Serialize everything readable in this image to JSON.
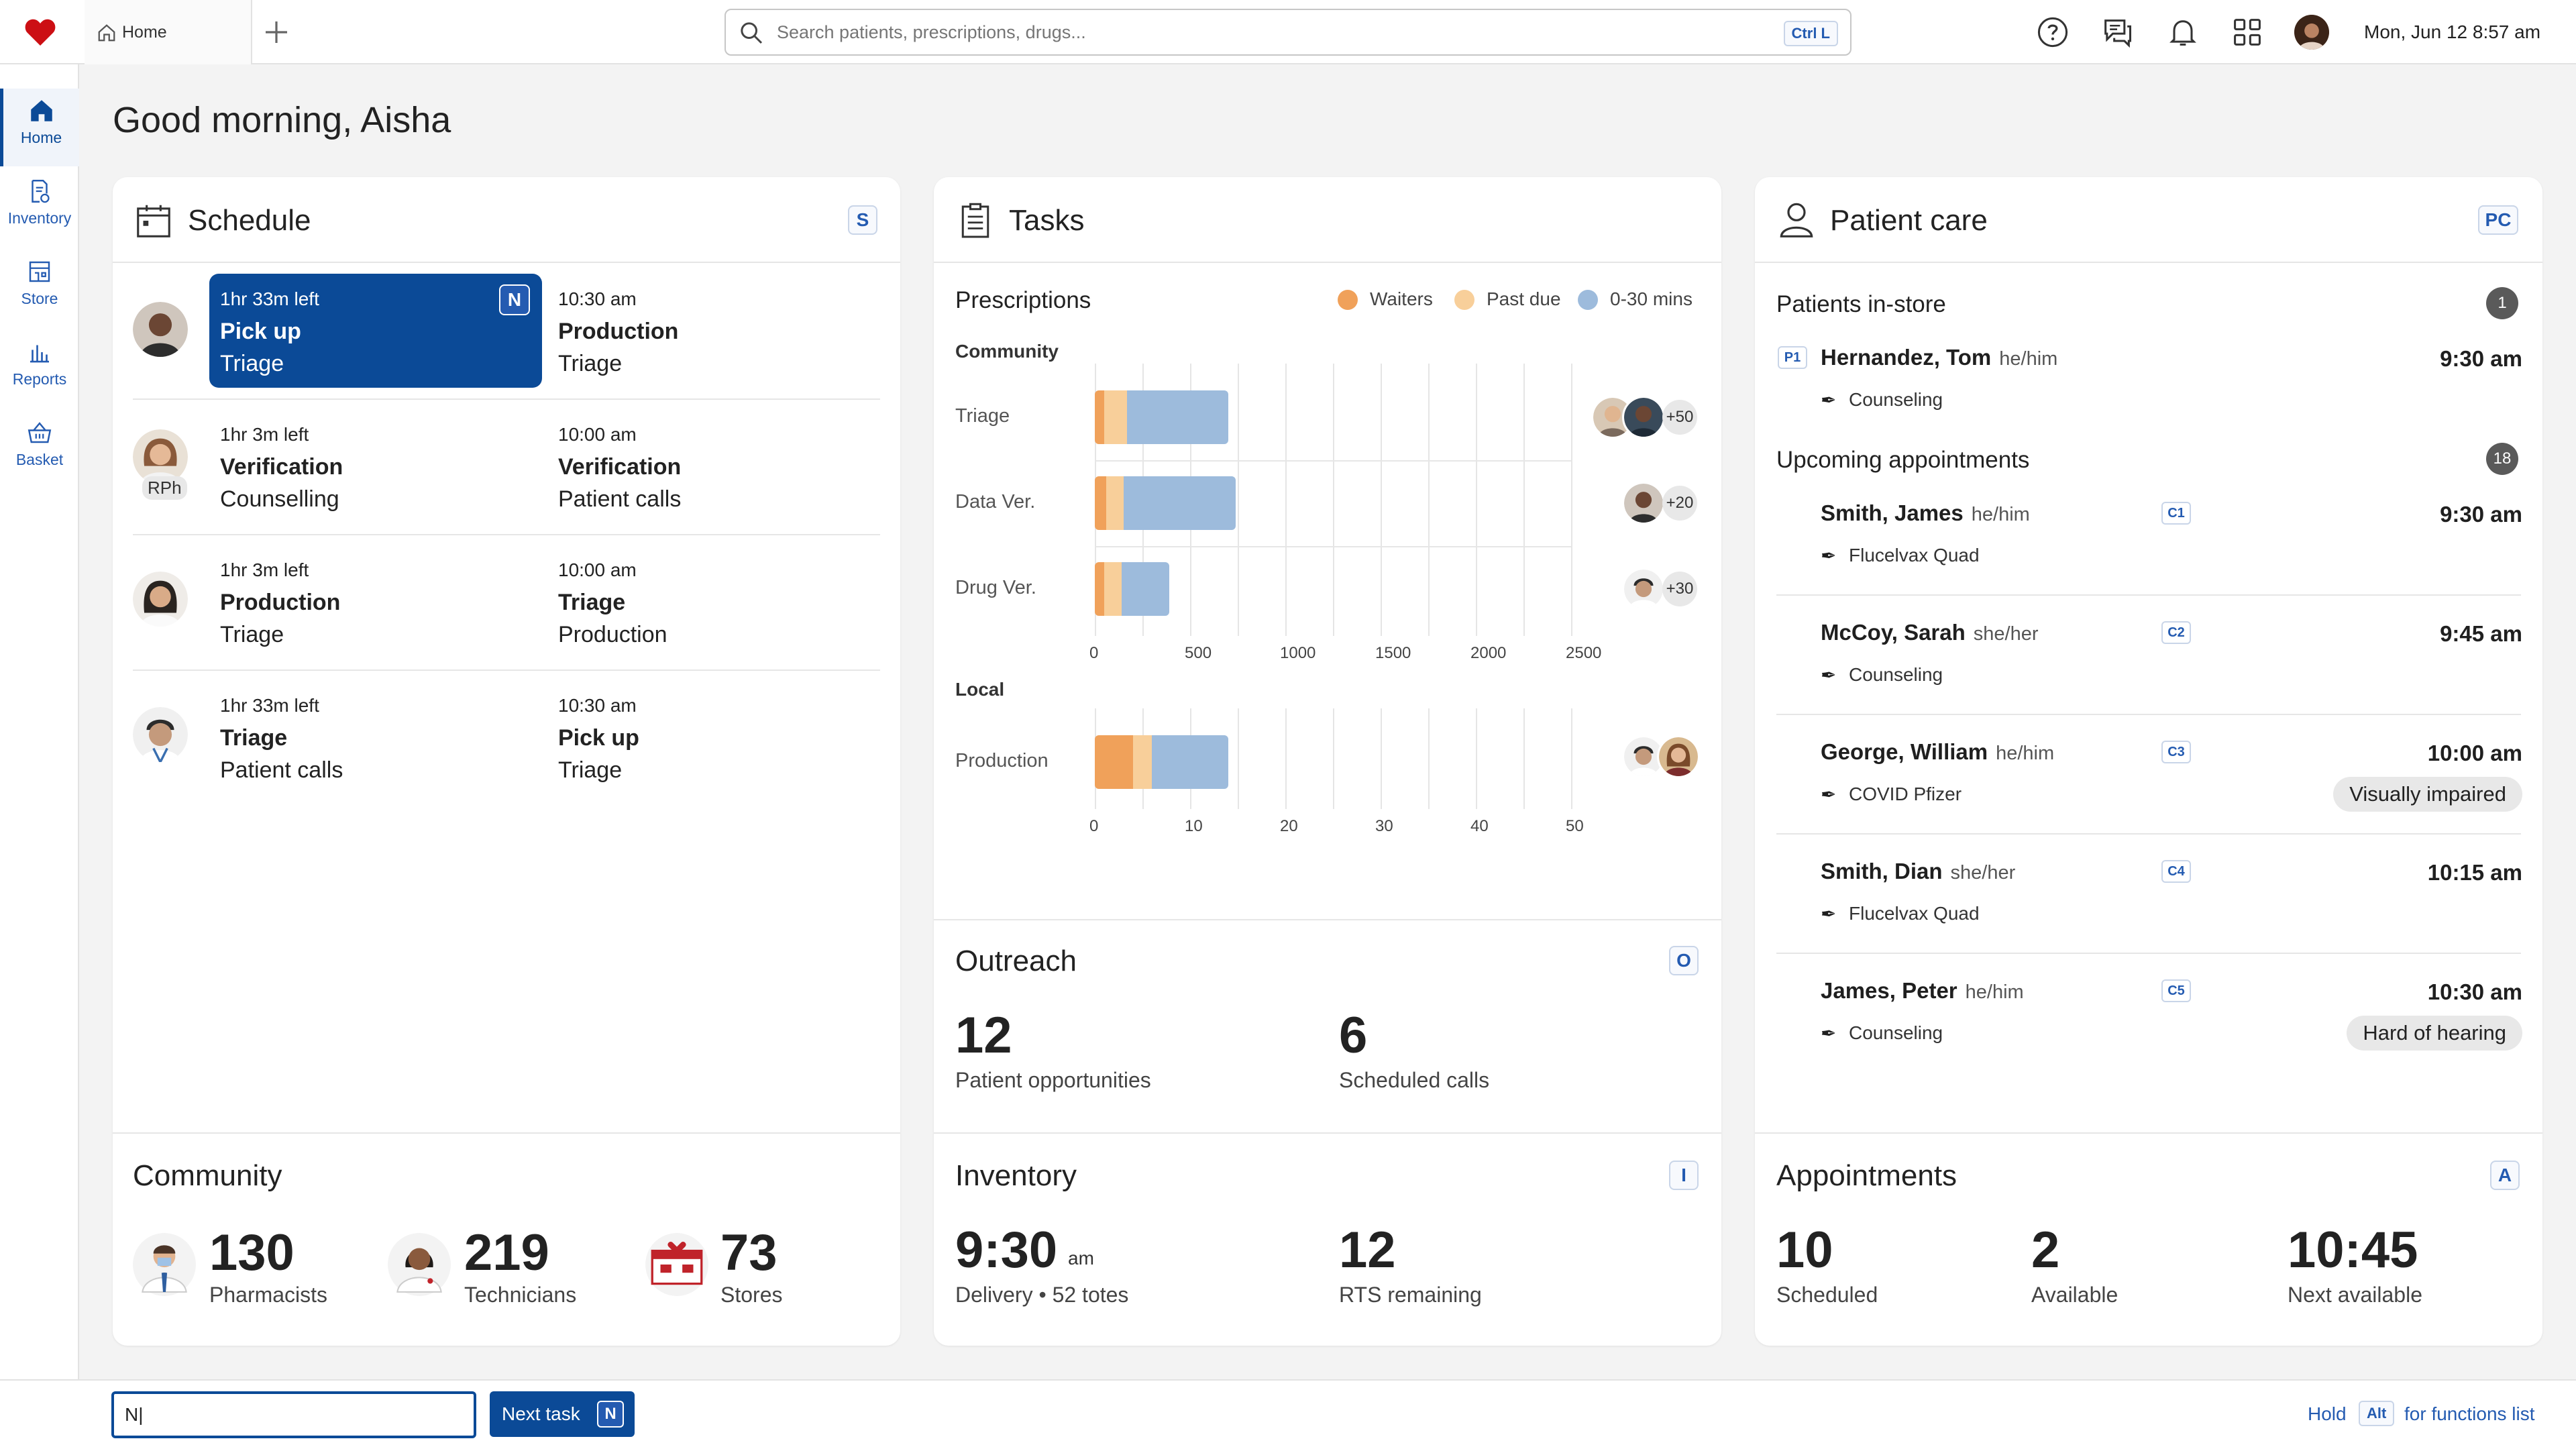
{
  "top": {
    "tab_label": "Home",
    "search_placeholder": "Search patients, prescriptions, drugs...",
    "search_shortcut": "Ctrl L",
    "datetime": "Mon, Jun 12 8:57 am"
  },
  "sidebar": {
    "items": [
      {
        "label": "Home",
        "icon": "home-icon"
      },
      {
        "label": "Inventory",
        "icon": "inventory-icon"
      },
      {
        "label": "Store",
        "icon": "store-icon"
      },
      {
        "label": "Reports",
        "icon": "reports-icon"
      },
      {
        "label": "Basket",
        "icon": "basket-icon"
      }
    ]
  },
  "greeting": "Good morning, Aisha",
  "schedule": {
    "title": "Schedule",
    "shortcut": "S",
    "rows": [
      {
        "left_time": "1hr 33m left",
        "left_task": "Pick up",
        "left_sub": "Triage",
        "right_time": "10:30 am",
        "right_task": "Production",
        "right_sub": "Triage",
        "highlight": true,
        "badge": "N"
      },
      {
        "left_time": "1hr 3m left",
        "left_task": "Verification",
        "left_sub": "Counselling",
        "right_time": "10:00 am",
        "right_task": "Verification",
        "right_sub": "Patient calls",
        "avatar_label": "RPh"
      },
      {
        "left_time": "1hr 3m left",
        "left_task": "Production",
        "left_sub": "Triage",
        "right_time": "10:00 am",
        "right_task": "Triage",
        "right_sub": "Production"
      },
      {
        "left_time": "1hr 33m left",
        "left_task": "Triage",
        "left_sub": "Patient calls",
        "right_time": "10:30 am",
        "right_task": "Pick up",
        "right_sub": "Triage"
      }
    ]
  },
  "tasks": {
    "title": "Tasks",
    "prescriptions_label": "Prescriptions",
    "community_label": "Community",
    "local_label": "Local",
    "legend": [
      {
        "name": "Waiters",
        "color": "#f0a15a"
      },
      {
        "name": "Past due",
        "color": "#f8cf9a"
      },
      {
        "name": "0-30 mins",
        "color": "#9dbbdc"
      }
    ],
    "more": [
      "+50",
      "+20",
      "+30"
    ]
  },
  "chart_data": [
    {
      "type": "bar",
      "orientation": "horizontal",
      "stacked": true,
      "title": "Community",
      "categories": [
        "Triage",
        "Data Ver.",
        "Drug Ver."
      ],
      "series": [
        {
          "name": "Waiters",
          "values": [
            50,
            60,
            50
          ]
        },
        {
          "name": "Past due",
          "values": [
            120,
            90,
            90
          ]
        },
        {
          "name": "0-30 mins",
          "values": [
            530,
            590,
            250
          ]
        }
      ],
      "xlim": [
        0,
        2500
      ],
      "xticks": [
        "0",
        "500",
        "1000",
        "1500",
        "2000",
        "2500"
      ]
    },
    {
      "type": "bar",
      "orientation": "horizontal",
      "stacked": true,
      "title": "Local",
      "categories": [
        "Production"
      ],
      "series": [
        {
          "name": "Waiters",
          "values": [
            4
          ]
        },
        {
          "name": "Past due",
          "values": [
            2
          ]
        },
        {
          "name": "0-30 mins",
          "values": [
            8
          ]
        }
      ],
      "xlim": [
        0,
        50
      ],
      "xticks": [
        "0",
        "10",
        "20",
        "30",
        "40",
        "50"
      ]
    }
  ],
  "patient_care": {
    "title": "Patient care",
    "shortcut": "PC",
    "instore_label": "Patients in-store",
    "instore_count": "1",
    "upcoming_label": "Upcoming appointments",
    "upcoming_count": "18",
    "instore": [
      {
        "code": "P1",
        "name": "Hernandez, Tom",
        "pronoun": "he/him",
        "time": "9:30 am",
        "note": "Counseling"
      }
    ],
    "upcoming": [
      {
        "code": "C1",
        "name": "Smith, James",
        "pronoun": "he/him",
        "time": "9:30 am",
        "note": "Flucelvax Quad"
      },
      {
        "code": "C2",
        "name": "McCoy, Sarah",
        "pronoun": "she/her",
        "time": "9:45 am",
        "note": "Counseling"
      },
      {
        "code": "C3",
        "name": "George, William",
        "pronoun": "he/him",
        "time": "10:00 am",
        "note": "COVID Pfizer",
        "chip": "Visually impaired"
      },
      {
        "code": "C4",
        "name": "Smith, Dian",
        "pronoun": "she/her",
        "time": "10:15 am",
        "note": "Flucelvax Quad"
      },
      {
        "code": "C5",
        "name": "James, Peter",
        "pronoun": "he/him",
        "time": "10:30 am",
        "note": "Counseling",
        "chip": "Hard of hearing"
      }
    ]
  },
  "outreach": {
    "title": "Outreach",
    "shortcut": "O",
    "stat1_value": "12",
    "stat1_label": "Patient opportunities",
    "stat2_value": "6",
    "stat2_label": "Scheduled calls"
  },
  "community": {
    "title": "Community",
    "stats": [
      {
        "value": "130",
        "label": "Pharmacists"
      },
      {
        "value": "219",
        "label": "Technicians"
      },
      {
        "value": "73",
        "label": "Stores"
      }
    ]
  },
  "inventory": {
    "title": "Inventory",
    "shortcut": "I",
    "delivery_time": "9:30",
    "delivery_ampm": "am",
    "delivery_label": "Delivery • 52 totes",
    "rts_value": "12",
    "rts_label": "RTS remaining"
  },
  "appointments": {
    "title": "Appointments",
    "shortcut": "A",
    "stats": [
      {
        "value": "10",
        "label": "Scheduled"
      },
      {
        "value": "2",
        "label": "Available"
      },
      {
        "value": "10:45",
        "label": "Next available"
      }
    ]
  },
  "footer": {
    "command_value": "N|",
    "next_task_label": "Next task",
    "next_task_key": "N",
    "hold_label": "Hold",
    "alt_key": "Alt",
    "functions_label": "for functions list"
  }
}
